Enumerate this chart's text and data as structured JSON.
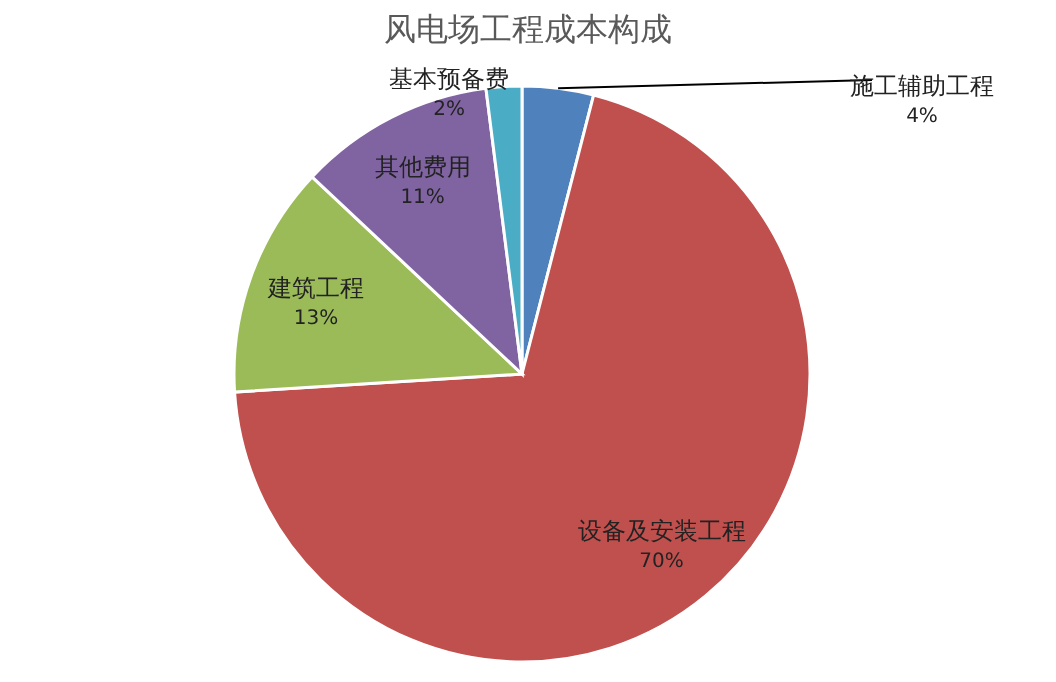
{
  "chart_data": {
    "type": "pie",
    "title": "风电场工程成本构成",
    "categories": [
      "施工辅助工程",
      "设备及安装工程",
      "建筑工程",
      "其他费用",
      "基本预备费"
    ],
    "values": [
      4,
      70,
      13,
      11,
      2
    ],
    "value_labels": [
      "4%",
      "70%",
      "13%",
      "11%",
      "2%"
    ],
    "colors": [
      "#4f81bd",
      "#c0504d",
      "#9bbb59",
      "#8064a2",
      "#4bacc6"
    ],
    "legend": false
  }
}
